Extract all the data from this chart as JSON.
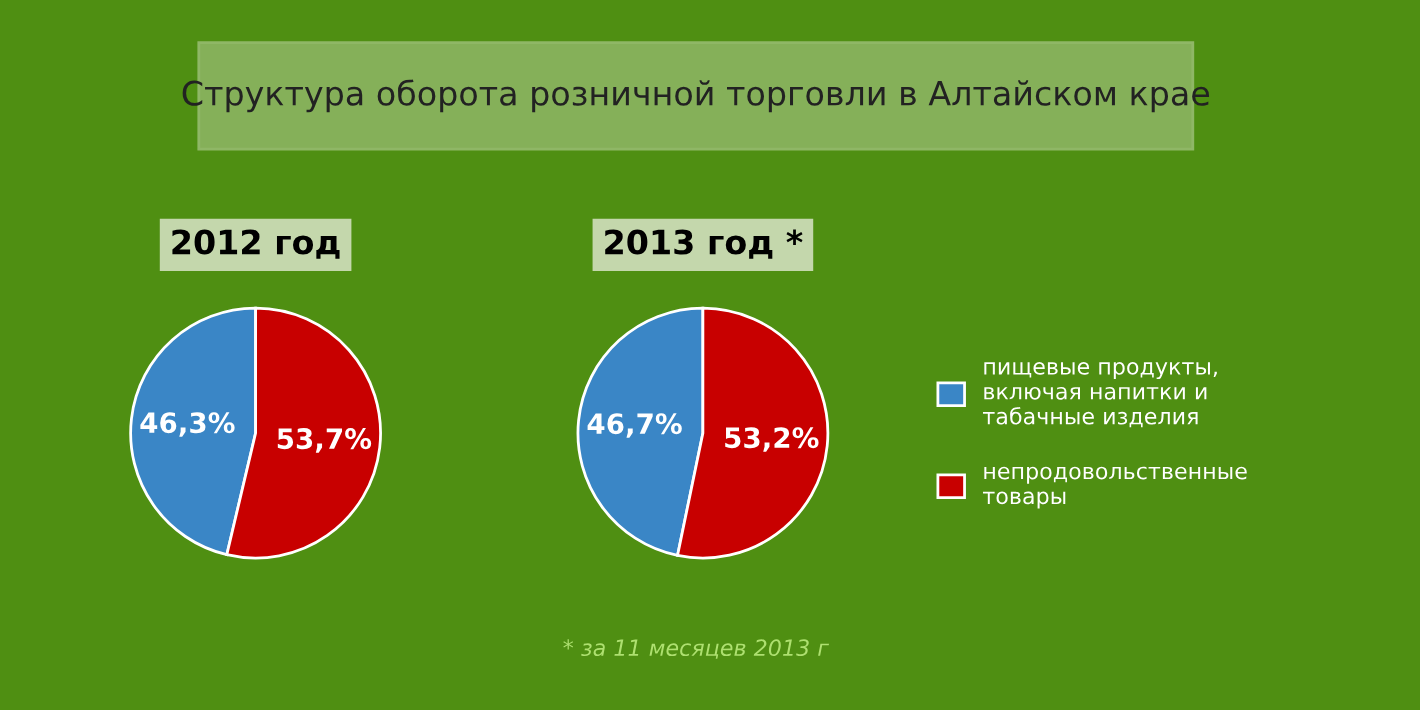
{
  "chart_data": [
    {
      "type": "pie",
      "title": "2012 год",
      "annotations": [
        "Структура оборота розничной торговли в Алтайском крае"
      ],
      "categories": [
        "пищевые продукты,\nвключая напитки и\nтабачные изделия",
        "непродовольственные\nтовары"
      ],
      "values": [
        46.3,
        53.7
      ],
      "colors": [
        "#3a86c6",
        "#c80000"
      ],
      "value_labels": [
        "46,3%",
        "53,7%"
      ],
      "legend": "right"
    },
    {
      "type": "pie",
      "title": "2013 год *",
      "annotations": [
        "* за 11 месяцев 2013 г"
      ],
      "values": [
        46.7,
        53.2
      ],
      "colors": [
        "#3a86c6",
        "#c80000"
      ],
      "value_labels": [
        "46,7%",
        "53,2%"
      ],
      "legend": false
    }
  ]
}
